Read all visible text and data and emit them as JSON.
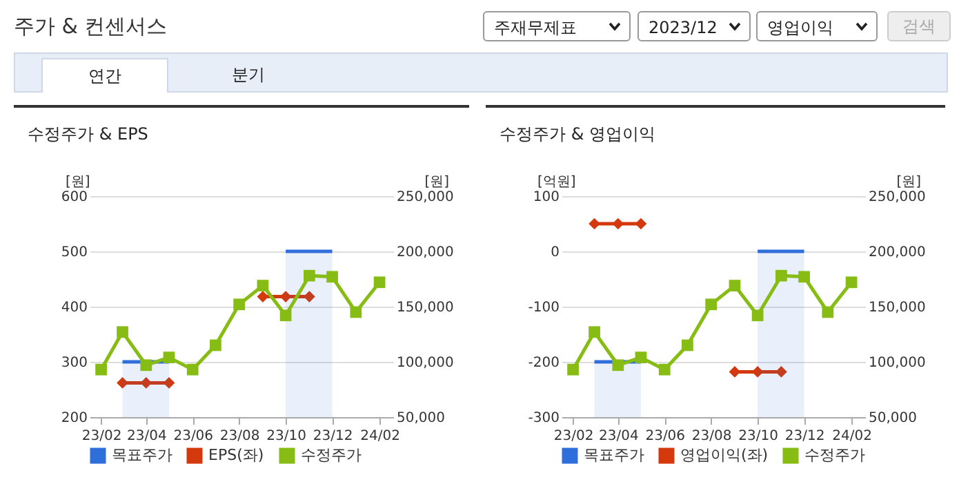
{
  "chart_data": [
    {
      "type": "other",
      "title": "주가 & 컨센서스",
      "annotations": [
        "주재무제표",
        "2023/12",
        "영업이익",
        "검색",
        "연간",
        "분기"
      ]
    },
    {
      "type": "line",
      "title": "수정주가 & EPS",
      "ylabel": "[원]",
      "y2label": "[원]",
      "x": [
        "2023-02",
        "2023-03",
        "2023-04",
        "2023-05",
        "2023-06",
        "2023-07",
        "2023-08",
        "2023-09",
        "2023-10",
        "2023-11",
        "2023-12",
        "2024-01",
        "2024-02"
      ],
      "xlim": [
        "2023-01-17",
        "2024-02-19"
      ],
      "xticks": [
        {
          "value": "2023-02",
          "label": "23/02"
        },
        {
          "value": "2023-04",
          "label": "23/04"
        },
        {
          "value": "2023-06",
          "label": "23/06"
        },
        {
          "value": "2023-08",
          "label": "23/08"
        },
        {
          "value": "2023-10",
          "label": "23/10"
        },
        {
          "value": "2023-12",
          "label": "23/12"
        },
        {
          "value": "2024-02",
          "label": "24/02"
        }
      ],
      "ylim": [
        200,
        600
      ],
      "yticks": [
        200,
        300,
        400,
        500,
        600
      ],
      "y2lim": [
        50000,
        250000
      ],
      "y2ticks": [
        {
          "value": 50000,
          "label": "50,000"
        },
        {
          "value": 100000,
          "label": "100,000"
        },
        {
          "value": 150000,
          "label": "150,000"
        },
        {
          "value": 200000,
          "label": "200,000"
        },
        {
          "value": 250000,
          "label": "250,000"
        }
      ],
      "grid": "y",
      "legend": "bottom",
      "series": [
        {
          "name": "목표주가",
          "type": "area",
          "axis": "y2",
          "color": "#2f6fdc",
          "marker": "none",
          "values": [
            null,
            100000,
            100000,
            100000,
            null,
            null,
            null,
            null,
            200000,
            200000,
            200000,
            null,
            null
          ]
        },
        {
          "name": "EPS(좌)",
          "type": "line",
          "color": "#d4380d",
          "marker": "diamond",
          "values": [
            null,
            262,
            262,
            262,
            null,
            null,
            null,
            418,
            418,
            418,
            null,
            null,
            null
          ]
        },
        {
          "name": "수정주가",
          "type": "line",
          "axis": "y2",
          "color": "#86bc14",
          "marker": "square",
          "values": [
            93000,
            127000,
            97000,
            104000,
            93000,
            115000,
            152000,
            169000,
            142000,
            178000,
            177000,
            145000,
            172000
          ]
        }
      ]
    },
    {
      "type": "line",
      "title": "수정주가 & 영업이익",
      "ylabel": "[억원]",
      "y2label": "[원]",
      "x": [
        "2023-02",
        "2023-03",
        "2023-04",
        "2023-05",
        "2023-06",
        "2023-07",
        "2023-08",
        "2023-09",
        "2023-10",
        "2023-11",
        "2023-12",
        "2024-01",
        "2024-02"
      ],
      "xlim": [
        "2023-01-17",
        "2024-02-19"
      ],
      "xticks": [
        {
          "value": "2023-02",
          "label": "23/02"
        },
        {
          "value": "2023-04",
          "label": "23/04"
        },
        {
          "value": "2023-06",
          "label": "23/06"
        },
        {
          "value": "2023-08",
          "label": "23/08"
        },
        {
          "value": "2023-10",
          "label": "23/10"
        },
        {
          "value": "2023-12",
          "label": "23/12"
        },
        {
          "value": "2024-02",
          "label": "24/02"
        }
      ],
      "ylim": [
        -300,
        100
      ],
      "yticks": [
        -300,
        -200,
        -100,
        0,
        100
      ],
      "y2lim": [
        50000,
        250000
      ],
      "y2ticks": [
        {
          "value": 50000,
          "label": "50,000"
        },
        {
          "value": 100000,
          "label": "100,000"
        },
        {
          "value": 150000,
          "label": "150,000"
        },
        {
          "value": 200000,
          "label": "200,000"
        },
        {
          "value": 250000,
          "label": "250,000"
        }
      ],
      "grid": "y",
      "legend": "bottom",
      "series": [
        {
          "name": "목표주가",
          "type": "area",
          "axis": "y2",
          "color": "#2f6fdc",
          "marker": "none",
          "values": [
            null,
            100000,
            100000,
            100000,
            null,
            null,
            null,
            null,
            200000,
            200000,
            200000,
            null,
            null
          ]
        },
        {
          "name": "영업이익(좌)",
          "type": "line",
          "color": "#d4380d",
          "marker": "diamond",
          "values": [
            null,
            50,
            50,
            50,
            null,
            null,
            null,
            -218,
            -218,
            -218,
            null,
            null,
            null
          ]
        },
        {
          "name": "수정주가",
          "type": "line",
          "axis": "y2",
          "color": "#86bc14",
          "marker": "square",
          "values": [
            93000,
            127000,
            97000,
            104000,
            93000,
            115000,
            152000,
            169000,
            142000,
            178000,
            177000,
            145000,
            172000
          ]
        }
      ]
    }
  ]
}
